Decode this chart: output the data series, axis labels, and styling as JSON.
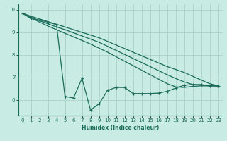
{
  "xlabel": "Humidex (Indice chaleur)",
  "background_color": "#c8ece4",
  "line_color": "#1a6b5a",
  "grid_color": "#aed4cc",
  "xlim": [
    -0.5,
    23.5
  ],
  "ylim": [
    5.3,
    10.25
  ],
  "xticks": [
    0,
    1,
    2,
    3,
    4,
    5,
    6,
    7,
    8,
    9,
    10,
    11,
    12,
    13,
    14,
    15,
    16,
    17,
    18,
    19,
    20,
    21,
    22,
    23
  ],
  "yticks": [
    6,
    7,
    8,
    9,
    10
  ],
  "jagged_x": [
    0,
    1,
    2,
    3,
    4,
    5,
    6,
    7,
    8,
    9,
    10,
    11,
    12,
    13,
    14,
    15,
    16,
    17,
    18,
    19,
    20,
    21,
    22,
    23
  ],
  "jagged_y": [
    9.85,
    9.62,
    9.55,
    9.45,
    9.35,
    6.15,
    6.08,
    6.95,
    5.55,
    5.82,
    6.42,
    6.55,
    6.55,
    6.28,
    6.28,
    6.28,
    6.3,
    6.38,
    6.52,
    6.65,
    6.68,
    6.68,
    6.62,
    6.62
  ],
  "smooth1_x": [
    0,
    1,
    2,
    3,
    4,
    5,
    6,
    7,
    8,
    9,
    10,
    11,
    12,
    13,
    14,
    15,
    16,
    17,
    18,
    19,
    20,
    21,
    22,
    23
  ],
  "smooth1_y": [
    9.85,
    9.72,
    9.6,
    9.48,
    9.36,
    9.24,
    9.12,
    9.0,
    8.88,
    8.76,
    8.6,
    8.44,
    8.28,
    8.12,
    7.96,
    7.8,
    7.64,
    7.48,
    7.35,
    7.22,
    7.05,
    6.88,
    6.72,
    6.62
  ],
  "smooth2_x": [
    0,
    1,
    2,
    3,
    4,
    5,
    6,
    7,
    8,
    9,
    10,
    11,
    12,
    13,
    14,
    15,
    16,
    17,
    18,
    19,
    20,
    21,
    22,
    23
  ],
  "smooth2_y": [
    9.85,
    9.68,
    9.52,
    9.38,
    9.24,
    9.12,
    8.98,
    8.84,
    8.7,
    8.56,
    8.38,
    8.2,
    8.02,
    7.84,
    7.66,
    7.48,
    7.3,
    7.12,
    6.95,
    6.8,
    6.68,
    6.65,
    6.63,
    6.62
  ],
  "smooth3_x": [
    0,
    1,
    2,
    3,
    4,
    5,
    6,
    7,
    8,
    9,
    10,
    11,
    12,
    13,
    14,
    15,
    16,
    17,
    18,
    19,
    20,
    21,
    22,
    23
  ],
  "smooth3_y": [
    9.85,
    9.65,
    9.46,
    9.28,
    9.12,
    8.96,
    8.8,
    8.64,
    8.48,
    8.3,
    8.12,
    7.92,
    7.72,
    7.52,
    7.32,
    7.12,
    6.92,
    6.72,
    6.58,
    6.55,
    6.6,
    6.62,
    6.62,
    6.62
  ]
}
